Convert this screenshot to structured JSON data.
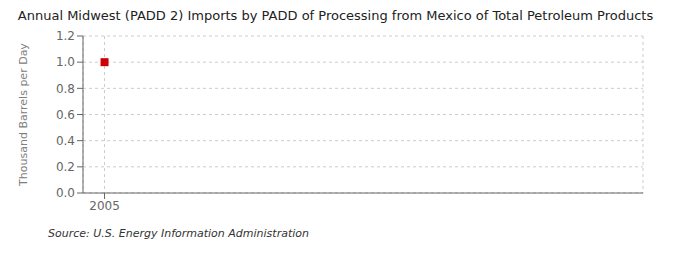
{
  "chart_data": {
    "type": "scatter",
    "title": "Annual Midwest (PADD 2) Imports by PADD of Processing from Mexico of Total Petroleum Products",
    "ylabel": "Thousand Barrels per Day",
    "source": "Source: U.S. Energy Information Administration",
    "x": [
      2005
    ],
    "values": [
      1.0
    ],
    "color": "#cc0000",
    "marker": "square",
    "xlim": [
      2004.2,
      2025
    ],
    "xticks": [
      2005
    ],
    "ylim": [
      0.0,
      1.2
    ],
    "yticks": [
      {
        "value": 0,
        "label": "0.0"
      },
      0.2,
      0.4,
      0.6,
      0.8,
      {
        "value": 1,
        "label": "1.0"
      },
      1.2
    ],
    "grid": true
  }
}
